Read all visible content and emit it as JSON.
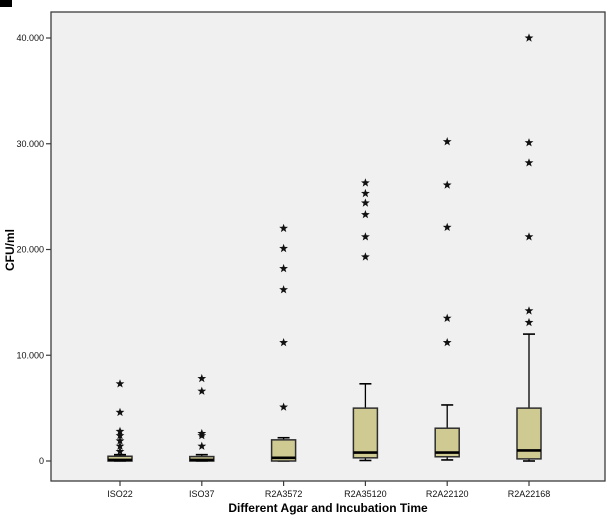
{
  "chart_data": {
    "type": "boxplot",
    "title": "",
    "xlabel": "Different Agar and Incubation Time",
    "ylabel": "CFU/ml",
    "categories": [
      "ISO22",
      "ISO37",
      "R2A3572",
      "R2A35120",
      "R2A22120",
      "R2A22168"
    ],
    "y_ticks": [
      {
        "value": 0,
        "label": "0"
      },
      {
        "value": 10000,
        "label": "10.000"
      },
      {
        "value": 20000,
        "label": "20.000"
      },
      {
        "value": 30000,
        "label": "30.000"
      },
      {
        "value": 40000,
        "label": "40.000"
      }
    ],
    "ylim": [
      -1900,
      42460
    ],
    "grid": false,
    "legend": "none",
    "outlier_marker": "star-asterisk",
    "series": [
      {
        "category": "ISO22",
        "whisker_low": 0,
        "q1": 0,
        "median": 100,
        "q3": 450,
        "whisker_high": 600,
        "outliers": [
          900,
          1400,
          1900,
          2400,
          2800,
          4600,
          7300
        ]
      },
      {
        "category": "ISO37",
        "whisker_low": 0,
        "q1": 0,
        "median": 100,
        "q3": 420,
        "whisker_high": 600,
        "outliers": [
          1400,
          2400,
          2600,
          6600,
          7800
        ]
      },
      {
        "category": "R2A3572",
        "whisker_low": 0,
        "q1": 0,
        "median": 300,
        "q3": 2000,
        "whisker_high": 2200,
        "outliers": [
          5100,
          11200,
          16200,
          18200,
          20100,
          22000
        ]
      },
      {
        "category": "R2A35120",
        "whisker_low": 50,
        "q1": 300,
        "median": 800,
        "q3": 5000,
        "whisker_high": 7300,
        "outliers": [
          19300,
          21200,
          23300,
          24400,
          25300,
          26300
        ]
      },
      {
        "category": "R2A22120",
        "whisker_low": 100,
        "q1": 400,
        "median": 800,
        "q3": 3100,
        "whisker_high": 5300,
        "outliers": [
          11200,
          13500,
          22100,
          26100,
          30200
        ]
      },
      {
        "category": "R2A22168",
        "whisker_low": 0,
        "q1": 200,
        "median": 1000,
        "q3": 5000,
        "whisker_high": 12000,
        "outliers": [
          13100,
          14200,
          21200,
          28200,
          30100,
          40000
        ]
      }
    ],
    "colors": {
      "box_fill": "#cfca92",
      "box_border": "#2e2e2e",
      "median": "#000000",
      "whisker": "#000000",
      "outlier": "#111111",
      "plot_bg": "#f0f0f0",
      "axis_line": "#3c3c3c",
      "text": "#1a1a1a"
    }
  }
}
